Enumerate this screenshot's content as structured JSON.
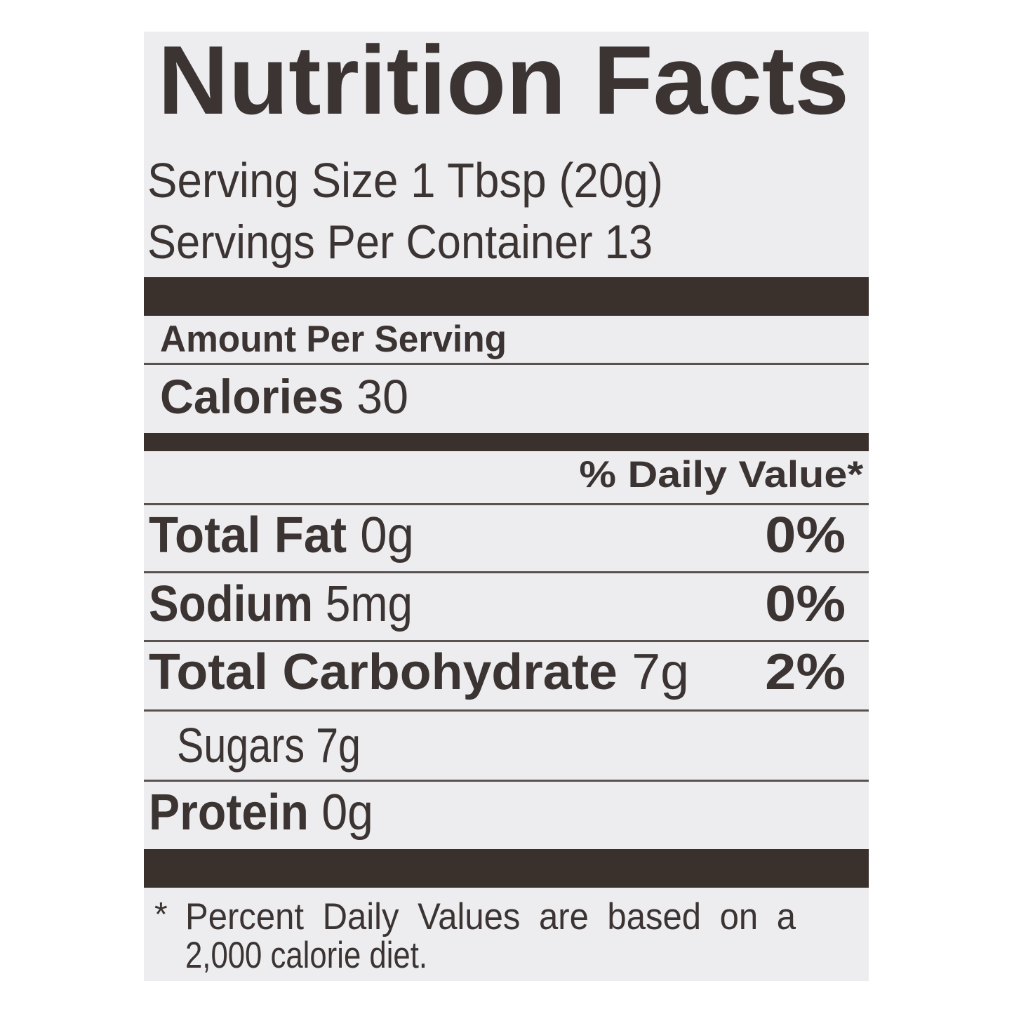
{
  "title": "Nutrition Facts",
  "serving_size": {
    "label": "Serving Size",
    "value": "1 Tbsp (20g)"
  },
  "servings_per_container": {
    "label": "Servings Per Container",
    "value": "13"
  },
  "amount_per_serving": "Amount Per Serving",
  "calories": {
    "label": "Calories",
    "value": "30"
  },
  "daily_value_header": "% Daily Value*",
  "nutrients": [
    {
      "label": "Total Fat",
      "amount": "0g",
      "dv": "0%"
    },
    {
      "label": "Sodium",
      "amount": "5mg",
      "dv": "0%"
    },
    {
      "label": "Total Carbohydrate",
      "amount": "7g",
      "dv": "2%"
    },
    {
      "label": "Sugars",
      "amount": "7g",
      "dv": ""
    },
    {
      "label": "Protein",
      "amount": "0g",
      "dv": ""
    }
  ],
  "footnote": {
    "asterisk": "*",
    "line1": "Percent Daily Values are based on a",
    "line2": "2,000 calorie diet."
  },
  "colors": {
    "ink": "#3b3432",
    "background": "#ededf0",
    "bars": "#3a302c"
  }
}
